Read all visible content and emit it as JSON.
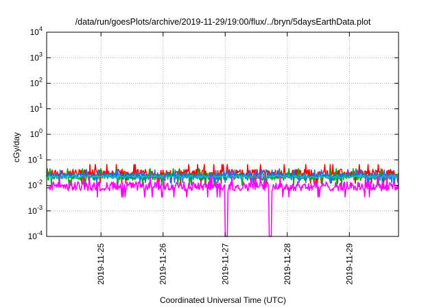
{
  "chart_data": {
    "type": "line",
    "title": "/data/run/goesPlots/archive/2019-11-29/19:00/flux/../bryn/5daysEarthData.plot",
    "xlabel": "Coordinated Universal Time (UTC)",
    "ylabel": "cGy/day",
    "yscale": "log",
    "ylim": [
      0.0001,
      10000
    ],
    "xlim": [
      "2019-11-24T03:00",
      "2019-11-29T19:00"
    ],
    "grid": true,
    "y_ticks": [
      {
        "base": "10",
        "exp": "-4"
      },
      {
        "base": "10",
        "exp": "-3"
      },
      {
        "base": "10",
        "exp": "-2"
      },
      {
        "base": "10",
        "exp": "-1"
      },
      {
        "base": "10",
        "exp": "0"
      },
      {
        "base": "10",
        "exp": "1"
      },
      {
        "base": "10",
        "exp": "2"
      },
      {
        "base": "10",
        "exp": "3"
      },
      {
        "base": "10",
        "exp": "4"
      }
    ],
    "x_ticks": [
      "2019-11-25",
      "2019-11-26",
      "2019-11-27",
      "2019-11-28",
      "2019-11-29"
    ],
    "series": [
      {
        "color": "#ff0000",
        "level_low": 0.012,
        "level_high": 0.065,
        "kind": "band"
      },
      {
        "color": "#00aa00",
        "level_low": 0.01,
        "level_high": 0.045,
        "kind": "band"
      },
      {
        "color": "#1e6fff",
        "level_low": 0.013,
        "level_high": 0.04,
        "kind": "band"
      },
      {
        "color": "#00c8c8",
        "level_low": 0.015,
        "level_high": 0.03,
        "kind": "line"
      },
      {
        "color": "#ff00ff",
        "level_low": 0.0035,
        "level_high": 0.022,
        "kind": "band",
        "dropouts": [
          "2019-11-27T00:30",
          "2019-11-27T17:30"
        ]
      }
    ]
  }
}
